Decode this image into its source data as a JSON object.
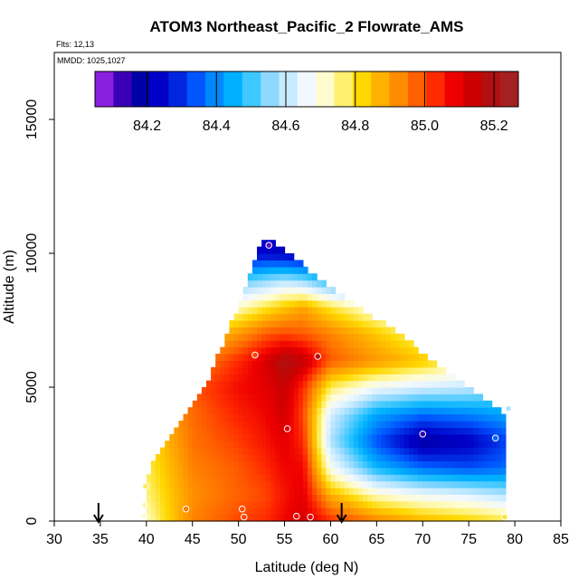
{
  "chart_data": {
    "type": "heatmap",
    "title": "ATOM3 Northeast_Pacific_2 Flowrate_AMS",
    "flights_label": "Flts: 12,13",
    "mmdd_label": "MMDD: 1025,1027",
    "xlabel": "Latitude (deg N)",
    "ylabel": "Altitude (m)",
    "xlim": [
      30,
      85
    ],
    "ylim": [
      0,
      17500
    ],
    "xticks": [
      "30",
      "35",
      "40",
      "45",
      "50",
      "55",
      "60",
      "65",
      "70",
      "75",
      "80",
      "85"
    ],
    "yticks": [
      "0",
      "5000",
      "10000",
      "15000"
    ],
    "colorbar": {
      "range": [
        84.05,
        85.27
      ],
      "ticks": [
        "84.2",
        "84.4",
        "84.6",
        "84.8",
        "85.0",
        "85.2"
      ],
      "colors": [
        "#8b1fe0",
        "#3a00b5",
        "#0000a8",
        "#0000c8",
        "#0026e0",
        "#0055ff",
        "#0088ff",
        "#00b0ff",
        "#3ec8ff",
        "#8ed8ff",
        "#c8ebff",
        "#f2f8ff",
        "#fffdd0",
        "#fff070",
        "#ffd800",
        "#ffb000",
        "#ff8c00",
        "#ff6000",
        "#ff2a00",
        "#ee0000",
        "#cc0000",
        "#b01010",
        "#a52020"
      ]
    },
    "arrow_latitudes": [
      34.8,
      61.2
    ],
    "grid": false,
    "profile": {
      "latitude": [
        40,
        45,
        50,
        53,
        55,
        57,
        60,
        65,
        70,
        75,
        79
      ],
      "altitude_m": [
        0,
        1000,
        2000,
        3000,
        4000,
        5000,
        6000,
        7000,
        8000,
        9000,
        10000
      ],
      "values": [
        [
          84.72,
          84.95,
          85.02,
          85.05,
          85.1,
          85.15,
          85.05,
          84.95,
          84.88,
          84.84,
          84.8
        ],
        [
          84.76,
          84.93,
          84.99,
          85.02,
          85.08,
          85.12,
          84.88,
          84.72,
          84.66,
          84.63,
          84.58
        ],
        [
          84.78,
          84.95,
          85.0,
          85.05,
          85.1,
          85.1,
          84.68,
          84.45,
          84.35,
          84.32,
          84.35
        ],
        [
          84.8,
          84.97,
          85.03,
          85.08,
          85.12,
          85.05,
          84.58,
          84.32,
          84.15,
          84.2,
          84.3
        ],
        [
          84.82,
          84.98,
          85.06,
          85.1,
          85.15,
          85.02,
          84.62,
          84.42,
          84.35,
          84.38,
          84.42
        ],
        [
          84.86,
          85.0,
          85.09,
          85.12,
          85.17,
          85.05,
          84.78,
          84.66,
          84.62,
          84.6,
          84.55
        ],
        [
          84.8,
          84.93,
          85.05,
          85.14,
          85.22,
          85.18,
          85.0,
          84.92,
          84.85,
          84.75,
          84.7
        ],
        [
          84.68,
          84.8,
          84.92,
          85.0,
          85.02,
          85.0,
          84.95,
          84.85,
          84.75,
          84.6,
          84.55
        ],
        [
          84.5,
          84.6,
          84.72,
          84.8,
          84.85,
          84.9,
          84.8,
          84.68,
          84.55,
          84.45,
          84.4
        ],
        [
          84.3,
          84.4,
          84.5,
          84.55,
          84.58,
          84.55,
          84.45,
          84.35,
          84.25,
          84.2,
          84.2
        ],
        [
          84.1,
          84.15,
          84.2,
          84.22,
          84.2,
          84.18,
          84.15,
          84.1,
          84.1,
          84.1,
          84.1
        ]
      ]
    },
    "coverage": {
      "altitude_m": [
        0,
        1000,
        2000,
        3000,
        4000,
        5000,
        6000,
        7000,
        8000,
        9000,
        10000,
        10500
      ],
      "lat_min": [
        39.8,
        39.8,
        40.5,
        42.5,
        44.2,
        46.5,
        47.5,
        48.8,
        50.0,
        51.0,
        52.0,
        53.0
      ],
      "lat_max": [
        79.0,
        79.0,
        79.0,
        79.0,
        79.0,
        75.0,
        71.0,
        67.5,
        63.0,
        59.0,
        55.5,
        53.6
      ]
    },
    "observations": [
      {
        "lat": 39.8,
        "alt": 200,
        "value": 84.72
      },
      {
        "lat": 39.8,
        "alt": 600,
        "value": 84.74
      },
      {
        "lat": 39.9,
        "alt": 1300,
        "value": 84.78
      },
      {
        "lat": 44.3,
        "alt": 450,
        "value": 84.96
      },
      {
        "lat": 50.4,
        "alt": 450,
        "value": 85.01
      },
      {
        "lat": 50.6,
        "alt": 150,
        "value": 85.02
      },
      {
        "lat": 51.8,
        "alt": 6200,
        "value": 85.02
      },
      {
        "lat": 55.3,
        "alt": 3450,
        "value": 85.12
      },
      {
        "lat": 56.3,
        "alt": 180,
        "value": 85.1
      },
      {
        "lat": 57.8,
        "alt": 150,
        "value": 85.12
      },
      {
        "lat": 58.6,
        "alt": 6150,
        "value": 85.2
      },
      {
        "lat": 70.0,
        "alt": 3250,
        "value": 84.12
      },
      {
        "lat": 78.9,
        "alt": 150,
        "value": 84.8
      },
      {
        "lat": 79.3,
        "alt": 4200,
        "value": 84.58
      },
      {
        "lat": 77.9,
        "alt": 3100,
        "value": 84.35
      },
      {
        "lat": 53.3,
        "alt": 10300,
        "value": 84.08
      }
    ]
  }
}
